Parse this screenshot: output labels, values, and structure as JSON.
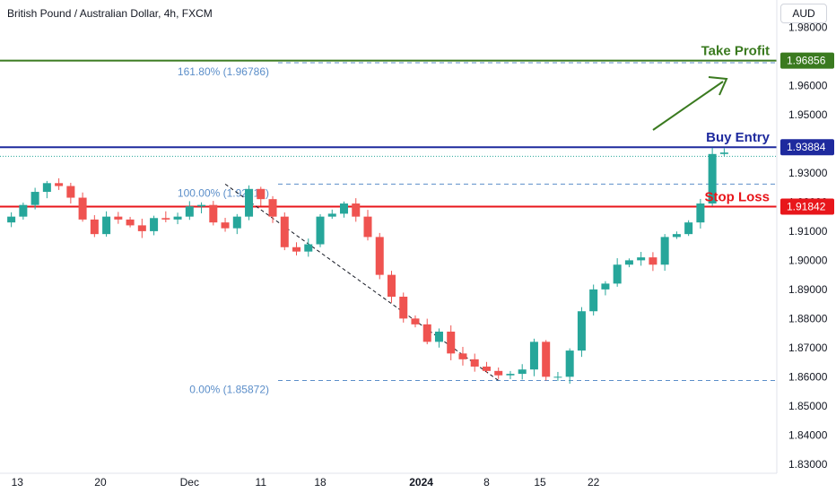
{
  "header": {
    "title": "British Pound / Australian Dollar, 4h, FXCM",
    "currency_button": "AUD"
  },
  "chart_data": {
    "type": "candlestick",
    "title": "British Pound / Australian Dollar, 4h, FXCM",
    "yaxis": {
      "range": [
        1.8255,
        1.9885
      ],
      "ticks": [
        "1.98000",
        "1.96000",
        "1.95000",
        "1.93000",
        "1.92000",
        "1.91000",
        "1.90000",
        "1.89000",
        "1.88000",
        "1.87000",
        "1.86000",
        "1.85000",
        "1.84000",
        "1.83000"
      ],
      "tick_values": [
        1.98,
        1.96,
        1.95,
        1.93,
        1.92,
        1.91,
        1.9,
        1.89,
        1.88,
        1.87,
        1.86,
        1.85,
        1.84,
        1.83
      ]
    },
    "xaxis": {
      "ticks": [
        {
          "label": "13",
          "pos": 0.5,
          "bold": false
        },
        {
          "label": "20",
          "pos": 7.5,
          "bold": false
        },
        {
          "label": "Dec",
          "pos": 15,
          "bold": false
        },
        {
          "label": "11",
          "pos": 21,
          "bold": false
        },
        {
          "label": "18",
          "pos": 26,
          "bold": false
        },
        {
          "label": "2024",
          "pos": 34.5,
          "bold": true
        },
        {
          "label": "8",
          "pos": 40,
          "bold": false
        },
        {
          "label": "15",
          "pos": 44.5,
          "bold": false
        },
        {
          "label": "22",
          "pos": 49,
          "bold": false
        }
      ]
    },
    "candles": [
      1.915,
      1.919,
      1.9235,
      1.9265,
      1.9255,
      1.9215,
      1.914,
      1.909,
      1.915,
      1.914,
      1.912,
      1.91,
      1.9145,
      1.914,
      1.915,
      1.9185,
      1.919,
      1.913,
      1.911,
      1.915,
      1.9245,
      1.921,
      1.915,
      1.9045,
      1.903,
      1.9055,
      1.915,
      1.916,
      1.9195,
      1.915,
      1.908,
      1.895,
      1.8875,
      1.88,
      1.878,
      1.872,
      1.8755,
      1.868,
      1.866,
      1.8635,
      1.862,
      1.8605,
      1.861,
      1.8625,
      1.872,
      1.86,
      1.86,
      1.869,
      1.8825,
      1.89,
      1.892,
      1.8985,
      1.9,
      1.901,
      1.8985,
      1.908,
      1.909,
      1.913,
      1.9195,
      1.9365,
      1.937
    ],
    "levels": {
      "take_profit": {
        "label": "Take Profit",
        "price_label": "1.96856",
        "value": 1.96856,
        "color": "#3a7a1f"
      },
      "buy_entry": {
        "label": "Buy Entry",
        "price_label": "1.93884",
        "value": 1.93884,
        "color": "#1e2a9e"
      },
      "stop_loss": {
        "label": "Stop Loss",
        "price_label": "1.91842",
        "value": 1.91842,
        "color": "#e8161b"
      },
      "current_price": {
        "value": 1.9357,
        "color": "#26a69a"
      }
    },
    "fibonacci": [
      {
        "label": "161.80% (1.96786)",
        "value": 1.96786
      },
      {
        "label": "100.00% (1.92617)",
        "value": 1.92617
      },
      {
        "label": "0.00% (1.85872)",
        "value": 1.85872
      }
    ],
    "colors": {
      "up": "#26a69a",
      "down": "#ef5350",
      "fib": "#5b8ec9"
    }
  }
}
